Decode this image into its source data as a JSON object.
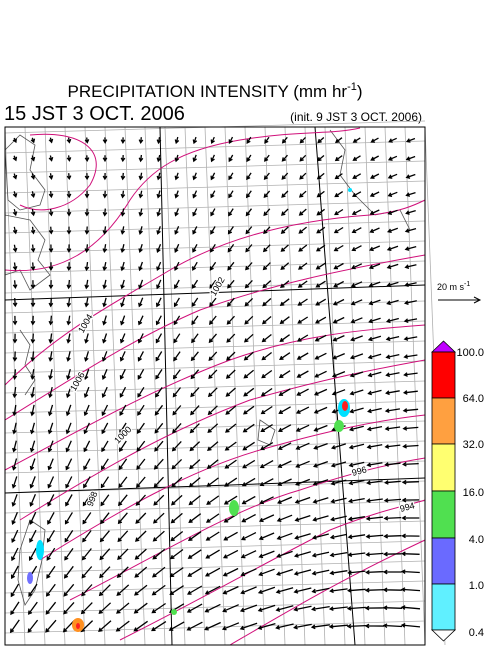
{
  "header": {
    "title_main": "PRECIPITATION INTENSITY (mm hr",
    "title_exponent": "-1",
    "title_close": ")",
    "valid_time": "15 JST 3 OCT. 2006",
    "init_time": "(init. 9 JST 3 OCT. 2006)"
  },
  "reference_vector": {
    "label": "20 m s",
    "exponent": "-1"
  },
  "colorbar": {
    "labels": [
      "100.0",
      "64.0",
      "32.0",
      "16.0",
      "4.0",
      "1.0",
      "0.4"
    ]
  },
  "isobars": {
    "labels": [
      "1006",
      "1004",
      "1002",
      "1000",
      "998",
      "996",
      "994"
    ]
  }
}
